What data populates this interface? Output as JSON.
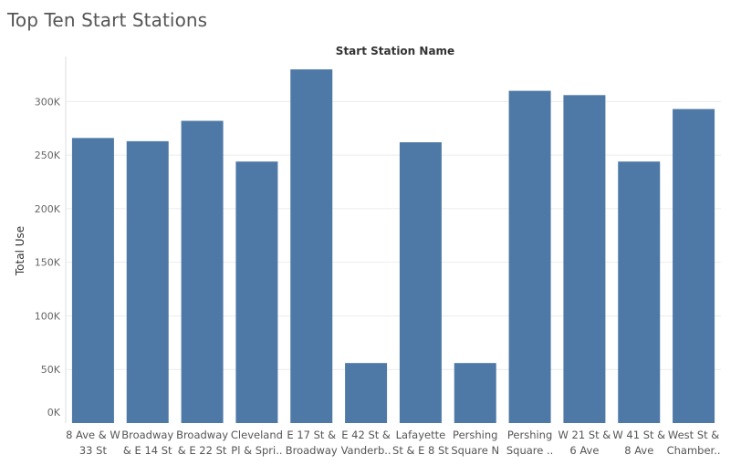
{
  "title": "Top Ten Start Stations",
  "chart_data": {
    "type": "bar",
    "title": "Top Ten Start Stations",
    "xlabel": "Start Station Name",
    "ylabel": "Total Use",
    "categories": [
      [
        "8 Ave & W",
        "33 St"
      ],
      [
        "Broadway",
        "& E 14 St"
      ],
      [
        "Broadway",
        "& E 22 St"
      ],
      [
        "Cleveland",
        "Pl & Spri.."
      ],
      [
        "E 17 St &",
        "Broadway"
      ],
      [
        "E 42 St &",
        "Vanderb.."
      ],
      [
        "Lafayette",
        "St & E 8 St"
      ],
      [
        "Pershing",
        "Square N"
      ],
      [
        "Pershing",
        "Square .."
      ],
      [
        "W 21 St &",
        "6 Ave"
      ],
      [
        "W 41 St &",
        "8 Ave"
      ],
      [
        "West St &",
        "Chamber.."
      ]
    ],
    "values": [
      266000,
      263000,
      282000,
      244000,
      330000,
      56000,
      262000,
      56000,
      310000,
      306000,
      244000,
      293000
    ],
    "yticks": [
      0,
      50000,
      100000,
      150000,
      200000,
      250000,
      300000
    ],
    "ytick_labels": [
      "0K",
      "50K",
      "100K",
      "150K",
      "200K",
      "250K",
      "300K"
    ],
    "ylim": [
      0,
      342000
    ],
    "grid": true,
    "colors": {
      "bar": "#4e79a7",
      "grid": "#ececec"
    }
  }
}
